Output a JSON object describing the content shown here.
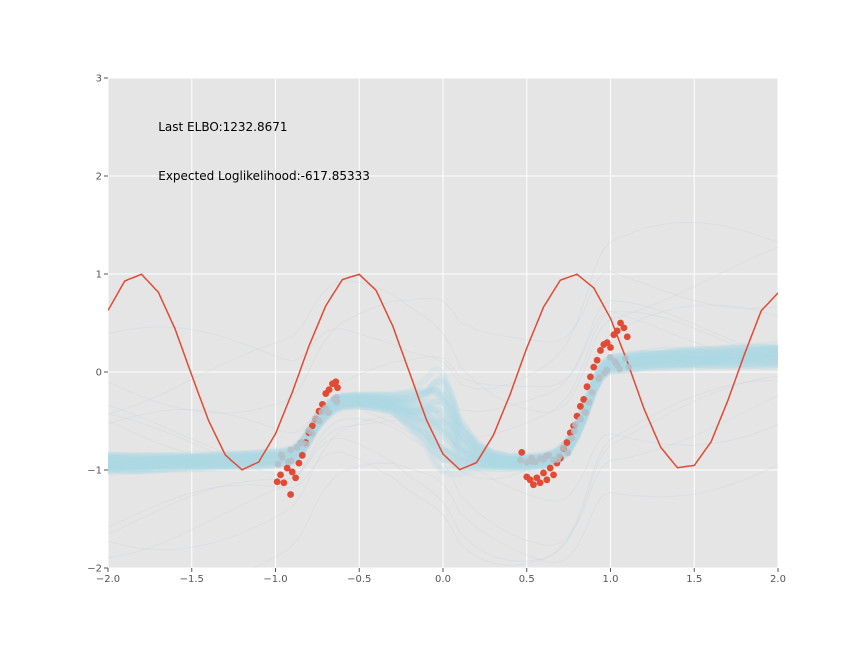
{
  "chart_data": {
    "type": "line",
    "title": "",
    "xlabel": "",
    "ylabel": "",
    "xlim": [
      -2.0,
      2.0
    ],
    "ylim": [
      -2,
      3
    ],
    "grid": true,
    "style": "ggplot",
    "x_ticks": [
      -2.0,
      -1.5,
      -1.0,
      -0.5,
      0.0,
      0.5,
      1.0,
      1.5,
      2.0
    ],
    "x_tick_labels": [
      "−2.0",
      "−1.5",
      "−1.0",
      "−0.5",
      "0.0",
      "0.5",
      "1.0",
      "1.5",
      "2.0"
    ],
    "y_ticks": [
      -2,
      -1,
      0,
      1,
      2,
      3
    ],
    "y_tick_labels": [
      "−2",
      "−1",
      "0",
      "1",
      "2",
      "3"
    ],
    "annotations": [
      {
        "text": "Last ELBO:1232.8671",
        "x": -1.7,
        "y": 2.5
      },
      {
        "text": "Expected Loglikelihood:-617.85333",
        "x": -1.7,
        "y": 2.0
      }
    ],
    "true_function": {
      "color": "#E24A33",
      "x": [
        -2.0,
        -1.9,
        -1.8,
        -1.7,
        -1.6,
        -1.5,
        -1.4,
        -1.3,
        -1.2,
        -1.1,
        -1.0,
        -0.9,
        -0.8,
        -0.7,
        -0.6,
        -0.5,
        -0.4,
        -0.3,
        -0.2,
        -0.1,
        0.0,
        0.1,
        0.2,
        0.3,
        0.4,
        0.5,
        0.6,
        0.7,
        0.8,
        0.9,
        1.0,
        1.1,
        1.2,
        1.3,
        1.4,
        1.5,
        1.6,
        1.7,
        1.8,
        1.9,
        2.0
      ],
      "y": [
        0.629,
        0.929,
        0.997,
        0.815,
        0.442,
        -0.034,
        -0.495,
        -0.846,
        -0.998,
        -0.918,
        -0.631,
        -0.207,
        0.267,
        0.676,
        0.944,
        0.996,
        0.834,
        0.468,
        -0.005,
        -0.484,
        -0.838,
        -0.996,
        -0.925,
        -0.648,
        -0.232,
        0.245,
        0.662,
        0.937,
        0.998,
        0.858,
        0.548,
        0.106,
        -0.374,
        -0.769,
        -0.977,
        -0.953,
        -0.714,
        -0.293,
        0.183,
        0.626,
        0.807
      ]
    },
    "observations": {
      "color": "#E24A33",
      "x": [
        -0.99,
        -0.97,
        -0.95,
        -0.93,
        -0.91,
        -0.9,
        -0.88,
        -0.86,
        -0.84,
        -0.82,
        -0.8,
        -0.78,
        -0.76,
        -0.74,
        -0.72,
        -0.7,
        -0.68,
        -0.66,
        -0.64,
        -0.63,
        0.47,
        0.5,
        0.52,
        0.54,
        0.56,
        0.58,
        0.6,
        0.62,
        0.64,
        0.66,
        0.68,
        0.7,
        0.72,
        0.74,
        0.76,
        0.78,
        0.8,
        0.82,
        0.84,
        0.86,
        0.88,
        0.9,
        0.92,
        0.94,
        0.96,
        0.98,
        1.0,
        1.02,
        1.04,
        1.06,
        1.08,
        1.1
      ],
      "y": [
        -1.12,
        -1.05,
        -1.13,
        -0.98,
        -1.25,
        -1.02,
        -1.08,
        -0.93,
        -0.85,
        -0.72,
        -0.62,
        -0.55,
        -0.48,
        -0.4,
        -0.33,
        -0.22,
        -0.18,
        -0.12,
        -0.1,
        -0.16,
        -0.82,
        -1.07,
        -1.1,
        -1.15,
        -1.08,
        -1.13,
        -1.03,
        -1.1,
        -0.98,
        -1.05,
        -0.93,
        -0.88,
        -0.78,
        -0.72,
        -0.62,
        -0.55,
        -0.45,
        -0.35,
        -0.28,
        -0.15,
        -0.05,
        0.05,
        0.12,
        0.22,
        0.28,
        0.3,
        0.25,
        0.38,
        0.42,
        0.5,
        0.45,
        0.36
      ]
    },
    "predictions": {
      "color": "#ADD8E6",
      "note_color_points": "#B4BEC8",
      "samples": 40,
      "x": [
        -2.0,
        -1.8,
        -1.6,
        -1.4,
        -1.2,
        -1.0,
        -0.95,
        -0.9,
        -0.85,
        -0.8,
        -0.75,
        -0.7,
        -0.65,
        -0.6,
        -0.5,
        -0.4,
        -0.3,
        -0.2,
        -0.1,
        -0.05,
        0.0,
        0.05,
        0.1,
        0.2,
        0.3,
        0.4,
        0.45,
        0.5,
        0.55,
        0.6,
        0.65,
        0.7,
        0.75,
        0.8,
        0.85,
        0.9,
        0.95,
        1.0,
        1.1,
        1.2,
        1.4,
        1.6,
        1.8,
        2.0
      ],
      "mean": [
        -0.93,
        -0.93,
        -0.92,
        -0.91,
        -0.9,
        -0.88,
        -0.87,
        -0.85,
        -0.78,
        -0.65,
        -0.5,
        -0.4,
        -0.33,
        -0.3,
        -0.29,
        -0.3,
        -0.32,
        -0.38,
        -0.42,
        -0.45,
        -0.5,
        -0.6,
        -0.75,
        -0.85,
        -0.9,
        -0.92,
        -0.92,
        -0.92,
        -0.91,
        -0.9,
        -0.88,
        -0.83,
        -0.75,
        -0.6,
        -0.4,
        -0.15,
        0.02,
        0.08,
        0.1,
        0.12,
        0.14,
        0.15,
        0.16,
        0.17
      ],
      "spread": [
        0.1,
        0.09,
        0.08,
        0.08,
        0.08,
        0.08,
        0.08,
        0.08,
        0.08,
        0.08,
        0.08,
        0.08,
        0.07,
        0.07,
        0.07,
        0.08,
        0.1,
        0.2,
        0.35,
        0.5,
        0.55,
        0.45,
        0.3,
        0.15,
        0.09,
        0.07,
        0.07,
        0.07,
        0.07,
        0.07,
        0.07,
        0.07,
        0.08,
        0.08,
        0.08,
        0.08,
        0.08,
        0.08,
        0.09,
        0.09,
        0.1,
        0.1,
        0.11,
        0.12
      ]
    }
  }
}
